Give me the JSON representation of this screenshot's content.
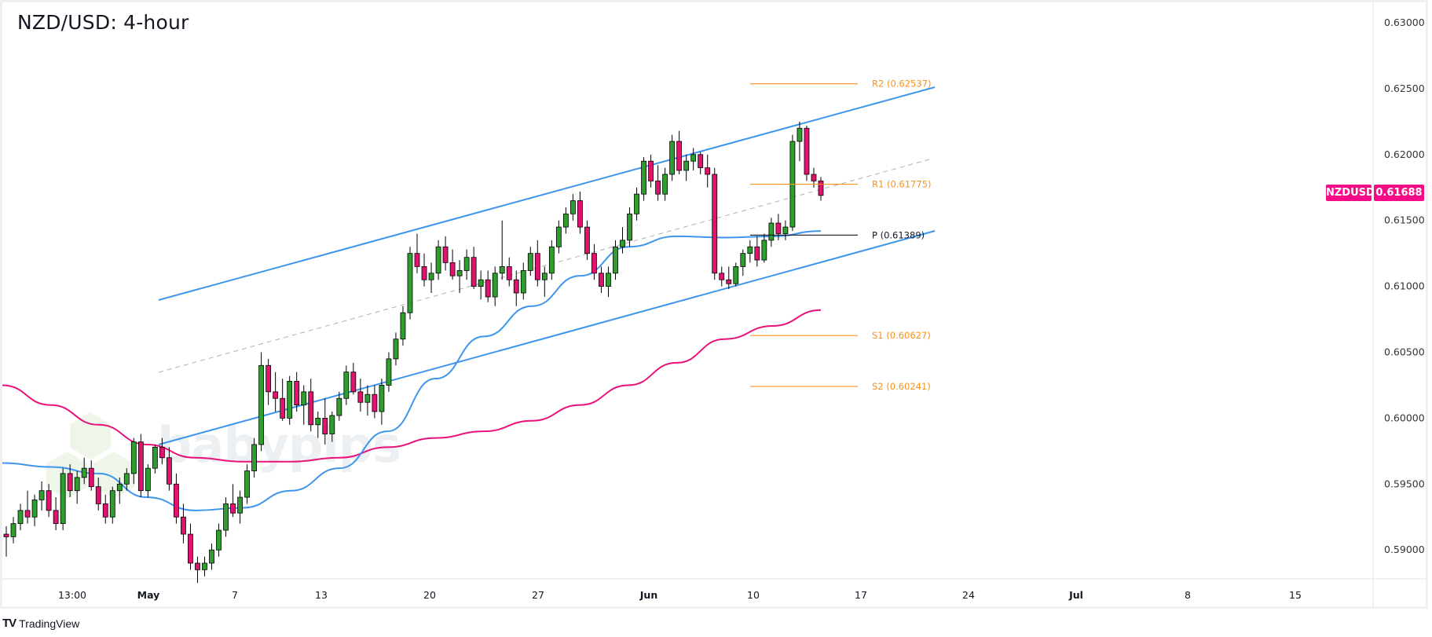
{
  "title": "NZD/USD: 4-hour",
  "symbol_tag": {
    "symbol": "NZDUSD",
    "price": "0.61688",
    "color": "#f50c86"
  },
  "branding": {
    "platform": "TradingView",
    "watermark": "babypips"
  },
  "price_axis": {
    "ticks": [
      "0.63000",
      "0.62500",
      "0.62000",
      "0.61500",
      "0.61000",
      "0.60500",
      "0.60000",
      "0.59500",
      "0.59000"
    ]
  },
  "time_axis": {
    "ticks": [
      {
        "label": "13:00",
        "bold": false
      },
      {
        "label": "May",
        "bold": true
      },
      {
        "label": "7",
        "bold": false
      },
      {
        "label": "13",
        "bold": false
      },
      {
        "label": "20",
        "bold": false
      },
      {
        "label": "27",
        "bold": false
      },
      {
        "label": "Jun",
        "bold": true
      },
      {
        "label": "10",
        "bold": false
      },
      {
        "label": "17",
        "bold": false
      },
      {
        "label": "24",
        "bold": false
      },
      {
        "label": "Jul",
        "bold": true
      },
      {
        "label": "8",
        "bold": false
      },
      {
        "label": "15",
        "bold": false
      }
    ]
  },
  "pivots": [
    {
      "name": "R2",
      "value": "0.62537",
      "label": "R2 (0.62537)",
      "color": "#f7931a"
    },
    {
      "name": "R1",
      "value": "0.61775",
      "label": "R1 (0.61775)",
      "color": "#f7931a"
    },
    {
      "name": "P",
      "value": "0.61389",
      "label": "P (0.61389)",
      "color": "#131722"
    },
    {
      "name": "S1",
      "value": "0.60627",
      "label": "S1 (0.60627)",
      "color": "#f7931a"
    },
    {
      "name": "S2",
      "value": "0.60241",
      "label": "S2 (0.60241)",
      "color": "#f7931a"
    }
  ],
  "colors": {
    "up": "#2e9e2e",
    "down": "#e0136f",
    "channel": "#3d95ec",
    "ma_fast": "#3d95ec",
    "ma_slow": "#e8127a",
    "midline": "#b0b0b0"
  },
  "chart_data": {
    "type": "candlestick",
    "title": "NZD/USD: 4-hour",
    "xlabel": "",
    "ylabel": "",
    "ylim": [
      0.5875,
      0.631
    ],
    "x_ticks": [
      "13:00",
      "May",
      "7",
      "13",
      "20",
      "27",
      "Jun",
      "10",
      "17",
      "24",
      "Jul",
      "8",
      "15"
    ],
    "y_ticks": [
      0.59,
      0.595,
      0.6,
      0.605,
      0.61,
      0.615,
      0.62,
      0.625,
      0.63
    ],
    "last_price": 0.61688,
    "pivot_levels": {
      "R2": 0.62537,
      "R1": 0.61775,
      "P": 0.61389,
      "S1": 0.60627,
      "S2": 0.60241
    },
    "ascending_channel": {
      "upper": [
        [
          "early May",
          0.6084
        ],
        [
          "mid Jun",
          0.625
        ]
      ],
      "middle": [
        [
          "early May",
          0.6029
        ],
        [
          "mid Jun",
          0.6195
        ]
      ],
      "lower": [
        [
          "early May",
          0.5973
        ],
        [
          "mid Jun",
          0.6139
        ]
      ]
    },
    "moving_averages": [
      {
        "name": "fast MA (blue)",
        "approx_values": [
          0.5966,
          0.596,
          0.593,
          0.5948,
          0.599,
          0.606,
          0.611,
          0.6138,
          0.6142
        ]
      },
      {
        "name": "slow MA (magenta)",
        "approx_values": [
          0.6025,
          0.599,
          0.5968,
          0.5967,
          0.598,
          0.6,
          0.603,
          0.606,
          0.6082
        ]
      }
    ],
    "candles_ohlc": [
      [
        0.5912,
        0.5918,
        0.5895,
        0.591
      ],
      [
        0.591,
        0.5925,
        0.5905,
        0.592
      ],
      [
        0.592,
        0.5935,
        0.5915,
        0.593
      ],
      [
        0.593,
        0.5945,
        0.592,
        0.5925
      ],
      [
        0.5925,
        0.5942,
        0.5918,
        0.5938
      ],
      [
        0.5938,
        0.5952,
        0.593,
        0.5945
      ],
      [
        0.5945,
        0.595,
        0.5925,
        0.593
      ],
      [
        0.593,
        0.594,
        0.5915,
        0.592
      ],
      [
        0.592,
        0.5962,
        0.5915,
        0.5958
      ],
      [
        0.5958,
        0.5965,
        0.594,
        0.5945
      ],
      [
        0.5945,
        0.596,
        0.5935,
        0.5955
      ],
      [
        0.5955,
        0.597,
        0.595,
        0.5962
      ],
      [
        0.5962,
        0.5968,
        0.5945,
        0.5948
      ],
      [
        0.5948,
        0.5955,
        0.593,
        0.5935
      ],
      [
        0.5935,
        0.5942,
        0.592,
        0.5925
      ],
      [
        0.5925,
        0.5948,
        0.592,
        0.5945
      ],
      [
        0.5945,
        0.5955,
        0.5935,
        0.595
      ],
      [
        0.595,
        0.5962,
        0.5945,
        0.5958
      ],
      [
        0.5958,
        0.5985,
        0.595,
        0.5982
      ],
      [
        0.5982,
        0.5988,
        0.594,
        0.5945
      ],
      [
        0.5945,
        0.5965,
        0.594,
        0.5962
      ],
      [
        0.5962,
        0.598,
        0.5958,
        0.5978
      ],
      [
        0.5978,
        0.5985,
        0.5965,
        0.597
      ],
      [
        0.597,
        0.5978,
        0.5945,
        0.595
      ],
      [
        0.595,
        0.5958,
        0.592,
        0.5925
      ],
      [
        0.5925,
        0.5935,
        0.5905,
        0.5912
      ],
      [
        0.5912,
        0.592,
        0.5885,
        0.589
      ],
      [
        0.589,
        0.5895,
        0.5875,
        0.5885
      ],
      [
        0.5885,
        0.5895,
        0.588,
        0.589
      ],
      [
        0.589,
        0.5905,
        0.5885,
        0.59
      ],
      [
        0.59,
        0.592,
        0.5895,
        0.5915
      ],
      [
        0.5915,
        0.594,
        0.591,
        0.5935
      ],
      [
        0.5935,
        0.595,
        0.5925,
        0.5928
      ],
      [
        0.5928,
        0.5945,
        0.592,
        0.594
      ],
      [
        0.594,
        0.5965,
        0.5935,
        0.596
      ],
      [
        0.596,
        0.5985,
        0.5955,
        0.598
      ],
      [
        0.598,
        0.605,
        0.5975,
        0.604
      ],
      [
        0.604,
        0.6045,
        0.601,
        0.602
      ],
      [
        0.602,
        0.6035,
        0.6005,
        0.6015
      ],
      [
        0.6015,
        0.603,
        0.5998,
        0.6
      ],
      [
        0.6,
        0.6032,
        0.5995,
        0.6028
      ],
      [
        0.6028,
        0.6035,
        0.6005,
        0.601
      ],
      [
        0.601,
        0.6025,
        0.5995,
        0.602
      ],
      [
        0.602,
        0.603,
        0.599,
        0.5995
      ],
      [
        0.5995,
        0.6005,
        0.5985,
        0.6
      ],
      [
        0.6,
        0.6015,
        0.598,
        0.5988
      ],
      [
        0.5988,
        0.6005,
        0.5982,
        0.6002
      ],
      [
        0.6002,
        0.602,
        0.5998,
        0.6015
      ],
      [
        0.6015,
        0.604,
        0.601,
        0.6035
      ],
      [
        0.6035,
        0.6042,
        0.6018,
        0.602
      ],
      [
        0.602,
        0.603,
        0.6005,
        0.6012
      ],
      [
        0.6012,
        0.6025,
        0.6002,
        0.6018
      ],
      [
        0.6018,
        0.6025,
        0.6,
        0.6005
      ],
      [
        0.6005,
        0.603,
        0.5995,
        0.6025
      ],
      [
        0.6025,
        0.605,
        0.602,
        0.6045
      ],
      [
        0.6045,
        0.6065,
        0.604,
        0.606
      ],
      [
        0.606,
        0.6085,
        0.6055,
        0.608
      ],
      [
        0.608,
        0.613,
        0.6075,
        0.6125
      ],
      [
        0.6125,
        0.614,
        0.611,
        0.6115
      ],
      [
        0.6115,
        0.6125,
        0.61,
        0.6105
      ],
      [
        0.6105,
        0.6118,
        0.6095,
        0.611
      ],
      [
        0.611,
        0.6135,
        0.6105,
        0.613
      ],
      [
        0.613,
        0.6138,
        0.6112,
        0.6118
      ],
      [
        0.6118,
        0.6128,
        0.6105,
        0.6108
      ],
      [
        0.6108,
        0.612,
        0.6095,
        0.6112
      ],
      [
        0.6112,
        0.6128,
        0.6105,
        0.6122
      ],
      [
        0.6122,
        0.613,
        0.6098,
        0.61
      ],
      [
        0.61,
        0.6112,
        0.609,
        0.6105
      ],
      [
        0.6105,
        0.6112,
        0.6088,
        0.6092
      ],
      [
        0.6092,
        0.6115,
        0.6085,
        0.611
      ],
      [
        0.611,
        0.615,
        0.6105,
        0.6115
      ],
      [
        0.6115,
        0.6122,
        0.61,
        0.6105
      ],
      [
        0.6105,
        0.6112,
        0.6085,
        0.6095
      ],
      [
        0.6095,
        0.6118,
        0.609,
        0.6112
      ],
      [
        0.6112,
        0.613,
        0.6108,
        0.6125
      ],
      [
        0.6125,
        0.6135,
        0.61,
        0.6105
      ],
      [
        0.6105,
        0.6115,
        0.6092,
        0.611
      ],
      [
        0.611,
        0.6135,
        0.6105,
        0.613
      ],
      [
        0.613,
        0.615,
        0.6125,
        0.6145
      ],
      [
        0.6145,
        0.616,
        0.614,
        0.6155
      ],
      [
        0.6155,
        0.617,
        0.615,
        0.6165
      ],
      [
        0.6165,
        0.6172,
        0.614,
        0.6145
      ],
      [
        0.6145,
        0.615,
        0.612,
        0.6125
      ],
      [
        0.6125,
        0.6132,
        0.6105,
        0.611
      ],
      [
        0.611,
        0.6115,
        0.6095,
        0.61
      ],
      [
        0.61,
        0.6115,
        0.6092,
        0.611
      ],
      [
        0.611,
        0.6135,
        0.6105,
        0.613
      ],
      [
        0.613,
        0.6145,
        0.6125,
        0.6135
      ],
      [
        0.6135,
        0.616,
        0.613,
        0.6155
      ],
      [
        0.6155,
        0.6175,
        0.615,
        0.617
      ],
      [
        0.617,
        0.6198,
        0.6165,
        0.6195
      ],
      [
        0.6195,
        0.62,
        0.6175,
        0.618
      ],
      [
        0.618,
        0.6192,
        0.6165,
        0.617
      ],
      [
        0.617,
        0.619,
        0.6165,
        0.6185
      ],
      [
        0.6185,
        0.6215,
        0.618,
        0.621
      ],
      [
        0.621,
        0.6218,
        0.6185,
        0.6188
      ],
      [
        0.6188,
        0.62,
        0.618,
        0.6195
      ],
      [
        0.6195,
        0.6205,
        0.6188,
        0.62
      ],
      [
        0.62,
        0.6202,
        0.6185,
        0.619
      ],
      [
        0.619,
        0.62,
        0.6175,
        0.6185
      ],
      [
        0.6185,
        0.619,
        0.6105,
        0.611
      ],
      [
        0.611,
        0.6115,
        0.61,
        0.6105
      ],
      [
        0.6105,
        0.6115,
        0.6098,
        0.6102
      ],
      [
        0.6102,
        0.6118,
        0.61,
        0.6115
      ],
      [
        0.6115,
        0.6128,
        0.6108,
        0.6125
      ],
      [
        0.6125,
        0.6135,
        0.6118,
        0.613
      ],
      [
        0.613,
        0.6138,
        0.6115,
        0.612
      ],
      [
        0.612,
        0.614,
        0.6118,
        0.6135
      ],
      [
        0.6135,
        0.6152,
        0.613,
        0.6148
      ],
      [
        0.6148,
        0.6155,
        0.6135,
        0.614
      ],
      [
        0.614,
        0.615,
        0.6135,
        0.6145
      ],
      [
        0.6145,
        0.6215,
        0.6142,
        0.621
      ],
      [
        0.621,
        0.6225,
        0.6195,
        0.622
      ],
      [
        0.622,
        0.6222,
        0.618,
        0.6185
      ],
      [
        0.6185,
        0.619,
        0.6175,
        0.618
      ],
      [
        0.618,
        0.6183,
        0.6165,
        0.6169
      ]
    ]
  }
}
